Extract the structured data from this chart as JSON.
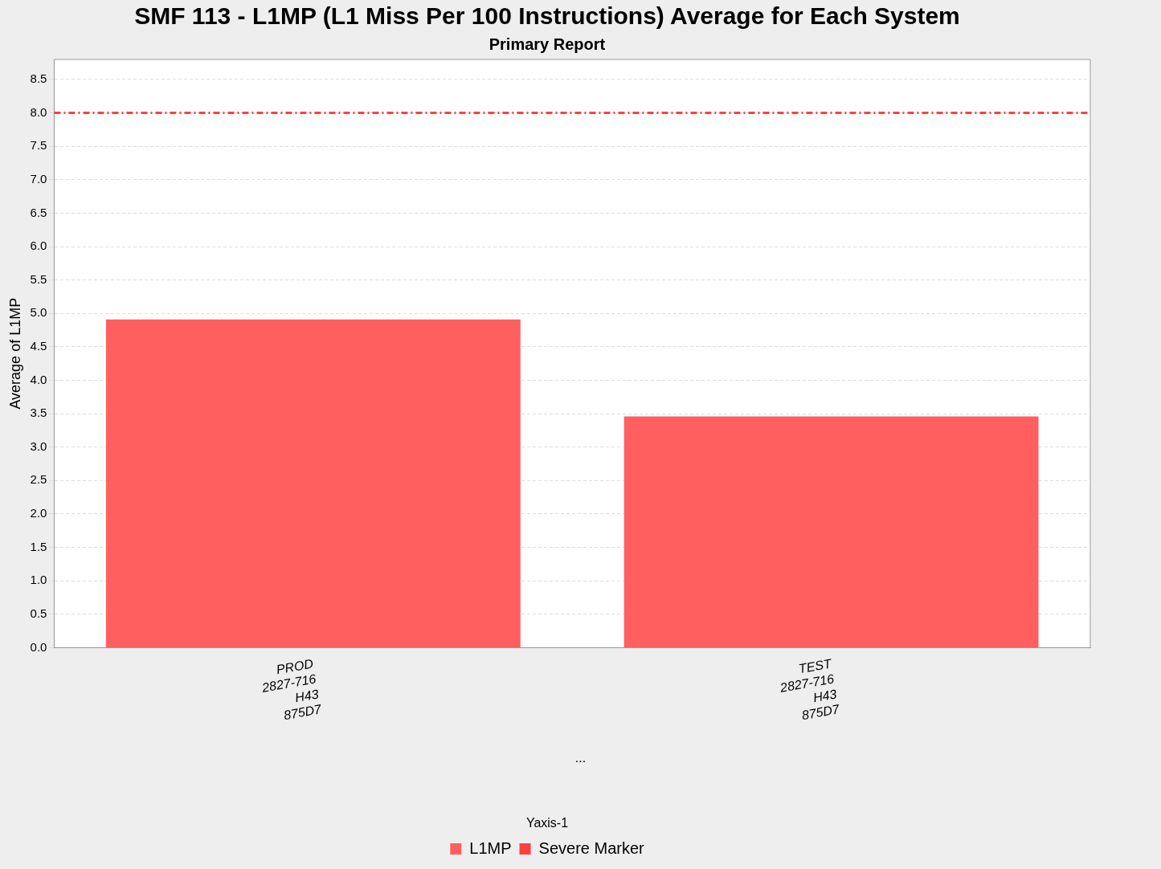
{
  "chart_data": {
    "type": "bar",
    "title": "SMF 113 - L1MP (L1 Miss Per 100 Instructions) Average for Each System",
    "subtitle": "Primary Report",
    "ylabel": "Average of L1MP",
    "legend_title": "Yaxis-1",
    "categories": [
      "PROD\n2827-716\nH43\n875D7",
      "TEST\n2827-716\nH43\n875D7"
    ],
    "series": [
      {
        "name": "L1MP",
        "color": "#ff5f5f",
        "values": [
          4.91,
          3.46
        ]
      }
    ],
    "ylim": [
      0,
      8.8
    ],
    "yticks": [
      {
        "value": 0,
        "label": "0.0"
      },
      {
        "value": 0.5,
        "label": "0.5"
      },
      {
        "value": 1,
        "label": "1.0"
      },
      {
        "value": 1.5,
        "label": "1.5"
      },
      {
        "value": 2,
        "label": "2.0"
      },
      {
        "value": 2.5,
        "label": "2.5"
      },
      {
        "value": 3,
        "label": "3.0"
      },
      {
        "value": 3.5,
        "label": "3.5"
      },
      {
        "value": 4,
        "label": "4.0"
      },
      {
        "value": 4.5,
        "label": "4.5"
      },
      {
        "value": 5,
        "label": "5.0"
      },
      {
        "value": 5.5,
        "label": "5.5"
      },
      {
        "value": 6,
        "label": "6.0"
      },
      {
        "value": 6.5,
        "label": "6.5"
      },
      {
        "value": 7,
        "label": "7.0"
      },
      {
        "value": 7.5,
        "label": "7.5"
      },
      {
        "value": 8,
        "label": "8.0"
      },
      {
        "value": 8.5,
        "label": "8.5"
      }
    ],
    "ref_lines": [
      {
        "axis": "y",
        "value": 8,
        "label": "Severe Marker",
        "color": "#ff4040",
        "line_style": "dashdot"
      }
    ],
    "annotations": [
      "..."
    ],
    "grid": "y",
    "legend": "bottom"
  }
}
